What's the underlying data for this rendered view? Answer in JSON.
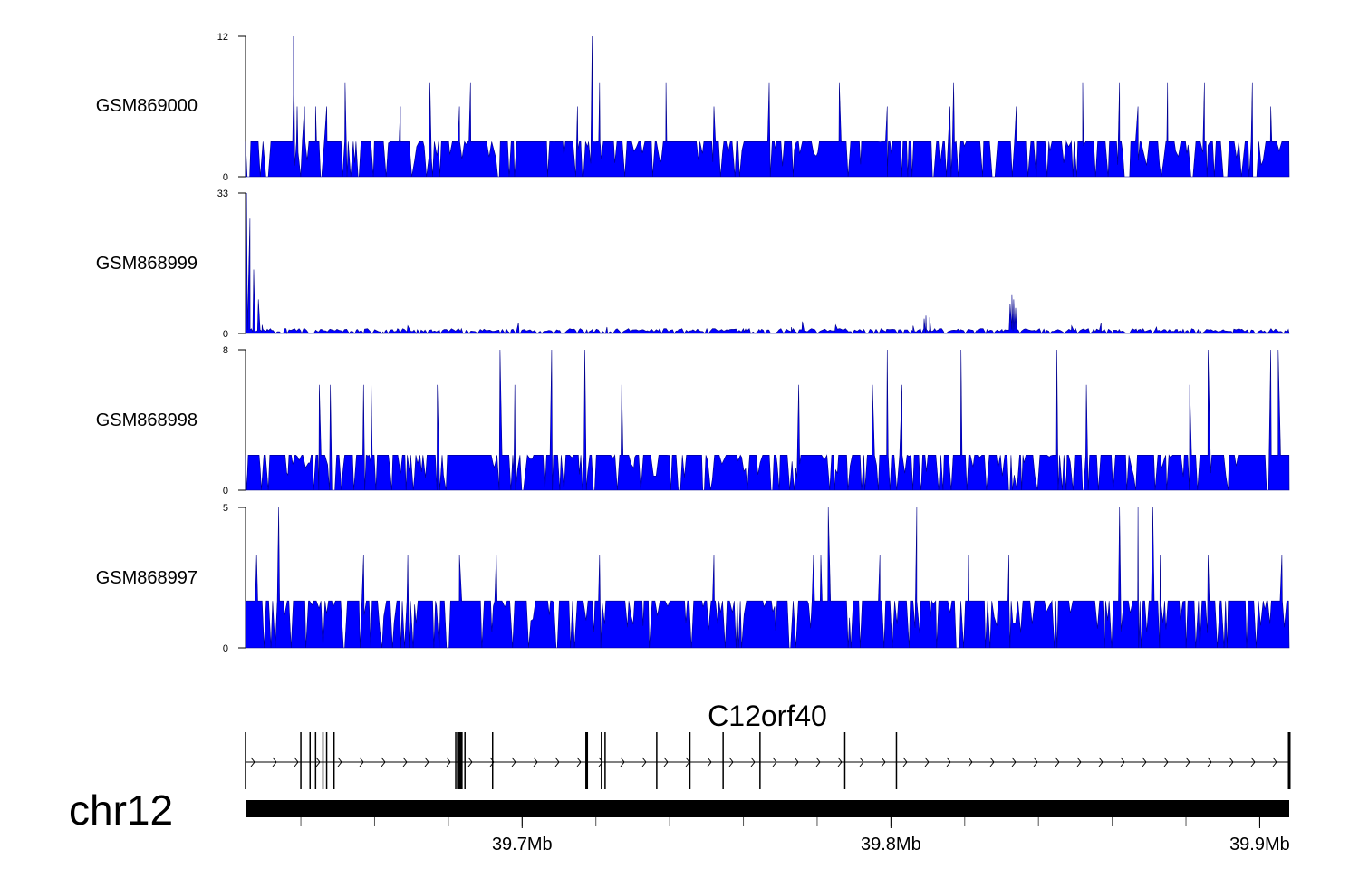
{
  "chart_data": {
    "type": "area",
    "chromosome": "chr12",
    "gene": "C12orf40",
    "x_range_mb": [
      39.625,
      39.908
    ],
    "x_ticks": [
      {
        "value": 39.7,
        "label": "39.7Mb"
      },
      {
        "value": 39.8,
        "label": "39.8Mb"
      },
      {
        "value": 39.9,
        "label": "39.9Mb"
      }
    ],
    "minor_tick_step_mb": 0.02,
    "tracks": [
      {
        "name": "GSM869000",
        "ylim": [
          0,
          12
        ],
        "color": "#0000ff",
        "base_level": 3,
        "seed": 11,
        "spikes": [
          [
            39.641,
            6
          ],
          [
            39.639,
            6
          ],
          [
            39.644,
            6
          ],
          [
            39.647,
            6
          ],
          [
            39.638,
            7
          ],
          [
            39.652,
            8
          ],
          [
            39.638,
            12
          ],
          [
            39.667,
            6
          ],
          [
            39.683,
            6
          ],
          [
            39.675,
            8
          ],
          [
            39.686,
            8
          ],
          [
            39.719,
            12
          ],
          [
            39.721,
            8
          ],
          [
            39.715,
            6
          ],
          [
            39.739,
            8
          ],
          [
            39.752,
            6
          ],
          [
            39.767,
            8
          ],
          [
            39.786,
            8
          ],
          [
            39.799,
            6
          ],
          [
            39.816,
            6
          ],
          [
            39.834,
            6
          ],
          [
            39.817,
            8
          ],
          [
            39.852,
            8
          ],
          [
            39.862,
            8
          ],
          [
            39.867,
            6
          ],
          [
            39.875,
            8
          ],
          [
            39.885,
            8
          ],
          [
            39.898,
            8
          ],
          [
            39.903,
            6
          ]
        ]
      },
      {
        "name": "GSM868999",
        "ylim": [
          0,
          33
        ],
        "color": "#0000ff",
        "base_level": 0.7,
        "seed": 23,
        "spikes": [
          [
            39.6253,
            33
          ],
          [
            39.6262,
            27
          ],
          [
            39.6272,
            15
          ],
          [
            39.6285,
            8
          ],
          [
            39.6295,
            2
          ],
          [
            39.669,
            1.8
          ],
          [
            39.699,
            2.5
          ],
          [
            39.723,
            1.5
          ],
          [
            39.773,
            1.5
          ],
          [
            39.776,
            2.8
          ],
          [
            39.785,
            2
          ],
          [
            39.806,
            1.8
          ],
          [
            39.809,
            3.5
          ],
          [
            39.8095,
            4.2
          ],
          [
            39.8105,
            3.8
          ],
          [
            39.8323,
            7
          ],
          [
            39.8328,
            9
          ],
          [
            39.8333,
            8
          ],
          [
            39.8338,
            6
          ],
          [
            39.849,
            1.8
          ],
          [
            39.857,
            2.5
          ],
          [
            39.872,
            1.5
          ]
        ]
      },
      {
        "name": "GSM868998",
        "ylim": [
          0,
          8
        ],
        "color": "#0000ff",
        "base_level": 2,
        "seed": 37,
        "spikes": [
          [
            39.659,
            7
          ],
          [
            39.648,
            6
          ],
          [
            39.645,
            6
          ],
          [
            39.657,
            6
          ],
          [
            39.677,
            6
          ],
          [
            39.694,
            8
          ],
          [
            39.698,
            6
          ],
          [
            39.708,
            8
          ],
          [
            39.717,
            8
          ],
          [
            39.727,
            6
          ],
          [
            39.727,
            6
          ],
          [
            39.775,
            6
          ],
          [
            39.795,
            6
          ],
          [
            39.799,
            8
          ],
          [
            39.803,
            6
          ],
          [
            39.819,
            8
          ],
          [
            39.845,
            8
          ],
          [
            39.853,
            6
          ],
          [
            39.886,
            8
          ],
          [
            39.903,
            8
          ],
          [
            39.905,
            8
          ],
          [
            39.881,
            6
          ]
        ]
      },
      {
        "name": "GSM868997",
        "ylim": [
          0,
          5
        ],
        "color": "#0000ff",
        "base_level": 1.67,
        "seed": 53,
        "spikes": [
          [
            39.634,
            5
          ],
          [
            39.628,
            3.3
          ],
          [
            39.657,
            3.3
          ],
          [
            39.669,
            3.3
          ],
          [
            39.683,
            3.3
          ],
          [
            39.693,
            3.3
          ],
          [
            39.721,
            3.3
          ],
          [
            39.752,
            3.3
          ],
          [
            39.779,
            3.3
          ],
          [
            39.781,
            3.3
          ],
          [
            39.783,
            5
          ],
          [
            39.797,
            3.3
          ],
          [
            39.807,
            5
          ],
          [
            39.821,
            3.3
          ],
          [
            39.832,
            3.3
          ],
          [
            39.862,
            5
          ],
          [
            39.867,
            5
          ],
          [
            39.871,
            5
          ],
          [
            39.873,
            3.3
          ],
          [
            39.886,
            3.3
          ],
          [
            39.906,
            3.3
          ]
        ]
      }
    ],
    "gene_model": {
      "strand": "+",
      "exons_mb": [
        39.625,
        39.64,
        39.6425,
        39.644,
        39.646,
        39.647,
        39.649,
        39.682,
        39.6825,
        39.683,
        39.6835,
        39.6845,
        39.692,
        39.7175,
        39.7215,
        39.7225,
        39.7365,
        39.7455,
        39.7545,
        39.7645,
        39.7875,
        39.8015,
        39.908
      ]
    }
  }
}
